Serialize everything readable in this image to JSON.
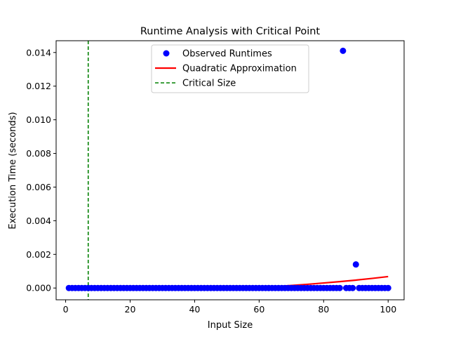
{
  "chart_data": {
    "type": "scatter",
    "title": "Runtime Analysis with Critical Point",
    "xlabel": "Input Size",
    "ylabel": "Execution Time (seconds)",
    "xlim": [
      -2.95,
      104.95
    ],
    "ylim": [
      -0.0007,
      0.0147
    ],
    "xticks": [
      0,
      20,
      40,
      60,
      80,
      100
    ],
    "xtick_labels": [
      "0",
      "20",
      "40",
      "60",
      "80",
      "100"
    ],
    "yticks": [
      0,
      0.002,
      0.004,
      0.006,
      0.008,
      0.01,
      0.012,
      0.014
    ],
    "ytick_labels": [
      "0.000",
      "0.002",
      "0.004",
      "0.006",
      "0.008",
      "0.010",
      "0.012",
      "0.014"
    ],
    "grid": false,
    "legend_position": "top-center",
    "series": [
      {
        "name": "Observed Runtimes",
        "kind": "points",
        "color": "#0000ff",
        "x": [
          1,
          2,
          3,
          4,
          5,
          6,
          7,
          8,
          9,
          10,
          11,
          12,
          13,
          14,
          15,
          16,
          17,
          18,
          19,
          20,
          21,
          22,
          23,
          24,
          25,
          26,
          27,
          28,
          29,
          30,
          31,
          32,
          33,
          34,
          35,
          36,
          37,
          38,
          39,
          40,
          41,
          42,
          43,
          44,
          45,
          46,
          47,
          48,
          49,
          50,
          51,
          52,
          53,
          54,
          55,
          56,
          57,
          58,
          59,
          60,
          61,
          62,
          63,
          64,
          65,
          66,
          67,
          68,
          69,
          70,
          71,
          72,
          73,
          74,
          75,
          76,
          77,
          78,
          79,
          80,
          81,
          82,
          83,
          84,
          85,
          86,
          87,
          88,
          89,
          90,
          91,
          92,
          93,
          94,
          95,
          96,
          97,
          98,
          99,
          100
        ],
        "y": [
          0,
          0,
          0,
          0,
          0,
          0,
          0,
          0,
          0,
          0,
          0,
          0,
          0,
          0,
          0,
          0,
          0,
          0,
          0,
          0,
          0,
          0,
          0,
          0,
          0,
          0,
          0,
          0,
          0,
          0,
          0,
          0,
          0,
          0,
          0,
          0,
          0,
          0,
          0,
          0,
          0,
          0,
          0,
          0,
          0,
          0,
          0,
          0,
          0,
          0,
          0,
          0,
          0,
          0,
          0,
          0,
          0,
          0,
          0,
          0,
          0,
          0,
          0,
          0,
          0,
          0,
          0,
          0,
          0,
          0,
          0,
          0,
          0,
          0,
          0,
          0,
          0,
          0,
          0,
          0,
          0,
          0,
          0,
          0,
          0,
          0.0141,
          0,
          0,
          0,
          0.0014,
          0,
          0,
          0,
          0,
          0,
          0,
          0,
          0,
          0,
          0
        ]
      },
      {
        "name": "Quadratic Approximation",
        "kind": "line",
        "color": "#ff0000",
        "x": [
          1,
          5,
          10,
          15,
          20,
          25,
          30,
          35,
          40,
          45,
          50,
          55,
          60,
          65,
          70,
          75,
          80,
          85,
          90,
          95,
          100
        ],
        "y": [
          0.0,
          -3e-05,
          -6e-05,
          -8e-05,
          -9e-05,
          -0.0001,
          -0.0001,
          -9e-05,
          -8e-05,
          -6e-05,
          -3e-05,
          0.0,
          4e-05,
          9e-05,
          0.00015,
          0.00022,
          0.0003,
          0.00038,
          0.00047,
          0.00057,
          0.00068
        ]
      },
      {
        "name": "Critical Size",
        "kind": "vline",
        "color": "#008000",
        "x_value": 7
      }
    ]
  }
}
